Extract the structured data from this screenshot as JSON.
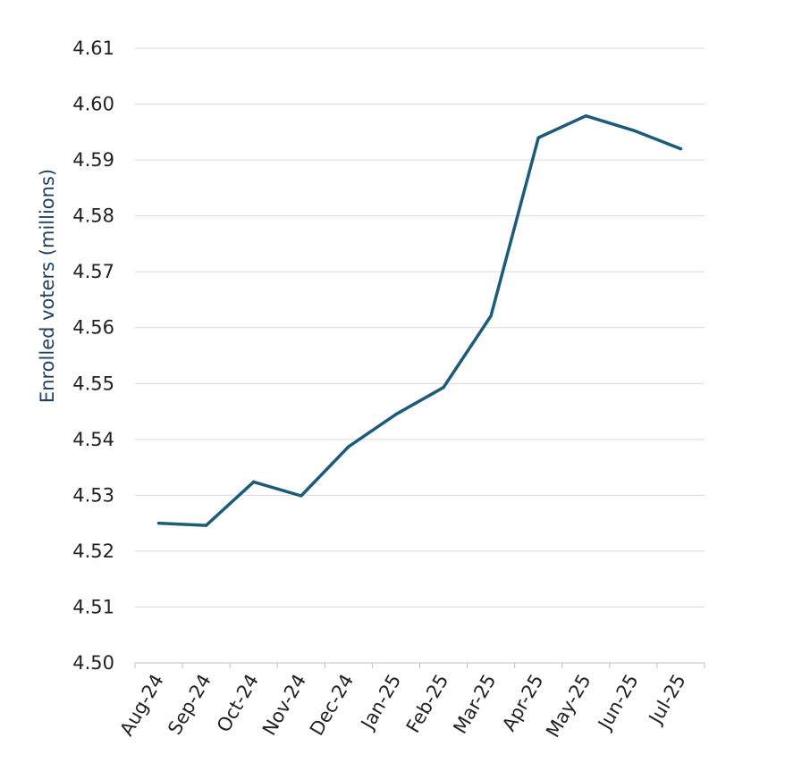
{
  "chart_data": {
    "type": "line",
    "title": "",
    "xlabel": "",
    "ylabel": "Enrolled voters (millions)",
    "categories": [
      "Aug-24",
      "Sep-24",
      "Oct-24",
      "Nov-24",
      "Dec-24",
      "Jan-25",
      "Feb-25",
      "Mar-25",
      "Apr-25",
      "May-25",
      "Jun-25",
      "Jul-25"
    ],
    "series": [
      {
        "values": [
          4.525,
          4.5246,
          4.5324,
          4.5299,
          4.5387,
          4.5445,
          4.5493,
          4.5621,
          4.594,
          4.5979,
          4.5953,
          4.592
        ]
      }
    ],
    "ylim": [
      4.5,
      4.61
    ],
    "yticks": [
      "4.50",
      "4.51",
      "4.52",
      "4.53",
      "4.54",
      "4.55",
      "4.56",
      "4.57",
      "4.58",
      "4.59",
      "4.60",
      "4.61"
    ],
    "grid": true,
    "colors": {
      "line": "#1c5b7a",
      "ylabel": "#1f3f63"
    }
  }
}
